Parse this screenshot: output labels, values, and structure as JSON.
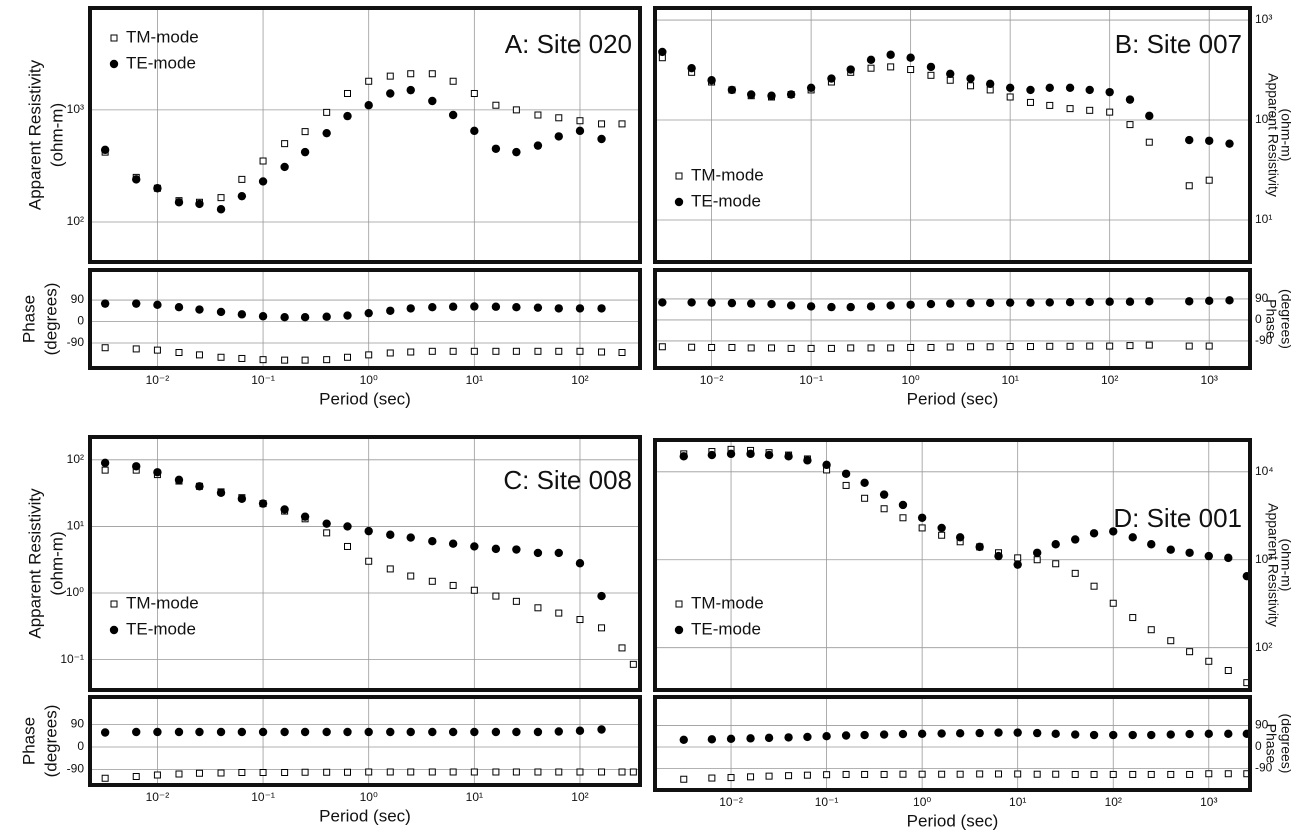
{
  "chart_data": [
    {
      "type": "scatter",
      "title": "A: Site 020",
      "ylabel": [
        "Apparent Resistivity",
        "(ohm-m)"
      ],
      "xscale": "log",
      "yscale": "log",
      "grid": true,
      "legend": "upper left",
      "yaxis": "left",
      "x": [
        0.0032,
        0.0063,
        0.01,
        0.016,
        0.025,
        0.04,
        0.063,
        0.1,
        0.16,
        0.25,
        0.4,
        0.63,
        1,
        1.6,
        2.5,
        4,
        6.3,
        10,
        16,
        25,
        40,
        63,
        100,
        160,
        250
      ],
      "series": [
        {
          "name": "TM-mode",
          "marker": "square-open",
          "color": "#000000",
          "values": [
            420,
            250,
            200,
            155,
            150,
            165,
            240,
            350,
            500,
            640,
            950,
            1400,
            1800,
            2000,
            2100,
            2100,
            1800,
            1400,
            1100,
            1000,
            900,
            850,
            800,
            750,
            750
          ]
        },
        {
          "name": "TE-mode",
          "marker": "circle",
          "color": "#000000",
          "values": [
            440,
            240,
            200,
            150,
            145,
            130,
            170,
            230,
            310,
            420,
            620,
            880,
            1100,
            1400,
            1500,
            1200,
            900,
            650,
            450,
            420,
            480,
            580,
            650,
            550,
            null
          ]
        }
      ],
      "xlim": [
        0.0023,
        370
      ],
      "ylim": [
        44,
        8100
      ],
      "xticks": [
        0.01,
        0.1,
        1,
        10,
        100
      ],
      "yticks": [
        {
          "value": 100,
          "label": "10²"
        },
        {
          "value": 1000,
          "label": "10³"
        }
      ]
    },
    {
      "type": "scatter",
      "ylabel": [
        "Phase",
        "(degrees)"
      ],
      "xlabel": "Period (sec)",
      "xscale": "log",
      "yscale": "linear",
      "grid": true,
      "yaxis": "left",
      "x": [
        0.0032,
        0.0063,
        0.01,
        0.016,
        0.025,
        0.04,
        0.063,
        0.1,
        0.16,
        0.25,
        0.4,
        0.63,
        1,
        1.6,
        2.5,
        4,
        6.3,
        10,
        16,
        25,
        40,
        63,
        100,
        160,
        250
      ],
      "series": [
        {
          "marker": "square-open",
          "color": "#000000",
          "values": [
            -110,
            -115,
            -120,
            -130,
            -140,
            -150,
            -155,
            -160,
            -162,
            -162,
            -160,
            -150,
            -140,
            -132,
            -128,
            -125,
            -125,
            -125,
            -125,
            -125,
            -125,
            -125,
            -125,
            -128,
            -130
          ]
        },
        {
          "marker": "circle",
          "color": "#000000",
          "values": [
            75,
            75,
            70,
            60,
            50,
            40,
            30,
            22,
            18,
            18,
            20,
            25,
            35,
            45,
            55,
            60,
            62,
            63,
            62,
            60,
            58,
            55,
            55,
            55,
            null
          ]
        }
      ],
      "xlim": [
        0.0023,
        370
      ],
      "ylim": [
        -195,
        216
      ],
      "xticks": [
        {
          "value": 0.01,
          "label": "10⁻²"
        },
        {
          "value": 0.1,
          "label": "10⁻¹"
        },
        {
          "value": 1,
          "label": "10⁰"
        },
        {
          "value": 10,
          "label": "10¹"
        },
        {
          "value": 100,
          "label": "10²"
        }
      ],
      "yticks": [
        90,
        0,
        -90
      ]
    },
    {
      "type": "scatter",
      "title": "B: Site 007",
      "ylabel": [
        "Apparent Resistivity",
        "(ohm-m)"
      ],
      "xscale": "log",
      "yscale": "log",
      "grid": true,
      "legend": "lower left",
      "yaxis": "right",
      "x": [
        0.0032,
        0.0063,
        0.01,
        0.016,
        0.025,
        0.04,
        0.063,
        0.1,
        0.16,
        0.25,
        0.4,
        0.63,
        1,
        1.6,
        2.5,
        4,
        6.3,
        10,
        16,
        25,
        40,
        63,
        100,
        160,
        250,
        630,
        1000,
        1600
      ],
      "series": [
        {
          "name": "TM-mode",
          "marker": "square-open",
          "color": "#000000",
          "values": [
            420,
            300,
            240,
            200,
            175,
            170,
            180,
            200,
            240,
            300,
            330,
            340,
            320,
            280,
            250,
            220,
            200,
            170,
            150,
            140,
            130,
            125,
            120,
            90,
            60,
            22,
            25,
            null
          ]
        },
        {
          "name": "TE-mode",
          "marker": "circle",
          "color": "#000000",
          "values": [
            480,
            330,
            250,
            200,
            180,
            175,
            180,
            210,
            260,
            320,
            400,
            450,
            420,
            340,
            290,
            260,
            230,
            210,
            200,
            210,
            210,
            200,
            190,
            160,
            110,
            63,
            62,
            58
          ]
        }
      ],
      "xlim": [
        0.0027,
        2570
      ],
      "ylim": [
        3.8,
        1320
      ],
      "xticks": [
        0.01,
        0.1,
        1,
        10,
        100,
        1000
      ],
      "yticks": [
        {
          "value": 10,
          "label": "10¹"
        },
        {
          "value": 100,
          "label": "10²"
        },
        {
          "value": 1000,
          "label": "10³"
        }
      ]
    },
    {
      "type": "scatter",
      "ylabel": [
        "Phase",
        "(degrees)"
      ],
      "xlabel": "Period (sec)",
      "xscale": "log",
      "yscale": "linear",
      "grid": true,
      "yaxis": "right",
      "x": [
        0.0032,
        0.0063,
        0.01,
        0.016,
        0.025,
        0.04,
        0.063,
        0.1,
        0.16,
        0.25,
        0.4,
        0.63,
        1,
        1.6,
        2.5,
        4,
        6.3,
        10,
        16,
        25,
        40,
        63,
        100,
        160,
        250,
        630,
        1000,
        1600
      ],
      "series": [
        {
          "marker": "square-open",
          "color": "#000000",
          "values": [
            -115,
            -117,
            -118,
            -118,
            -120,
            -120,
            -122,
            -122,
            -122,
            -120,
            -120,
            -120,
            -118,
            -118,
            -116,
            -115,
            -115,
            -114,
            -114,
            -113,
            -113,
            -112,
            -112,
            -110,
            -108,
            -112,
            -112,
            null
          ]
        },
        {
          "marker": "circle",
          "color": "#000000",
          "values": [
            75,
            75,
            74,
            72,
            70,
            68,
            62,
            58,
            55,
            55,
            58,
            62,
            65,
            68,
            70,
            72,
            73,
            74,
            74,
            75,
            76,
            77,
            78,
            78,
            80,
            80,
            82,
            84
          ]
        }
      ],
      "xlim": [
        0.0027,
        2570
      ],
      "ylim": [
        -206,
        214
      ],
      "xticks": [
        {
          "value": 0.01,
          "label": "10⁻²"
        },
        {
          "value": 0.1,
          "label": "10⁻¹"
        },
        {
          "value": 1,
          "label": "10⁰"
        },
        {
          "value": 10,
          "label": "10¹"
        },
        {
          "value": 100,
          "label": "10²"
        },
        {
          "value": 1000,
          "label": "10³"
        }
      ],
      "yticks": [
        90,
        0,
        -90
      ]
    },
    {
      "type": "scatter",
      "title": "C: Site 008",
      "ylabel": [
        "Apparent Resistivity",
        "(ohm-m)"
      ],
      "xscale": "log",
      "yscale": "log",
      "grid": true,
      "legend": "lower left",
      "yaxis": "left",
      "x": [
        0.0032,
        0.0063,
        0.01,
        0.016,
        0.025,
        0.04,
        0.063,
        0.1,
        0.16,
        0.25,
        0.4,
        0.63,
        1,
        1.6,
        2.5,
        4,
        6.3,
        10,
        16,
        25,
        40,
        63,
        100,
        160,
        250,
        320
      ],
      "series": [
        {
          "name": "TM-mode",
          "marker": "square-open",
          "color": "#000000",
          "values": [
            70,
            70,
            60,
            48,
            40,
            33,
            27,
            22,
            17,
            13,
            8,
            5,
            3,
            2.3,
            1.8,
            1.5,
            1.3,
            1.1,
            0.9,
            0.75,
            0.6,
            0.5,
            0.4,
            0.3,
            0.15,
            0.085
          ]
        },
        {
          "name": "TE-mode",
          "marker": "circle",
          "color": "#000000",
          "values": [
            90,
            80,
            65,
            50,
            40,
            32,
            26,
            22,
            18,
            14,
            11,
            10,
            8.5,
            7.5,
            6.8,
            6,
            5.5,
            5,
            4.6,
            4.5,
            4,
            4,
            2.8,
            0.9,
            null,
            null
          ]
        }
      ],
      "xlim": [
        0.0023,
        370
      ],
      "ylim": [
        0.035,
        220
      ],
      "xticks": [
        0.01,
        0.1,
        1,
        10,
        100
      ],
      "yticks": [
        {
          "value": 0.1,
          "label": "10⁻¹"
        },
        {
          "value": 1,
          "label": "10⁰"
        },
        {
          "value": 10,
          "label": "10¹"
        },
        {
          "value": 100,
          "label": "10²"
        }
      ]
    },
    {
      "type": "scatter",
      "ylabel": [
        "Phase",
        "(degrees)"
      ],
      "xlabel": "Period (sec)",
      "xscale": "log",
      "yscale": "linear",
      "grid": true,
      "yaxis": "left",
      "x": [
        0.0032,
        0.0063,
        0.01,
        0.016,
        0.025,
        0.04,
        0.063,
        0.1,
        0.16,
        0.25,
        0.4,
        0.63,
        1,
        1.6,
        2.5,
        4,
        6.3,
        10,
        16,
        25,
        40,
        63,
        100,
        160,
        250,
        320
      ],
      "series": [
        {
          "marker": "square-open",
          "color": "#000000",
          "values": [
            -125,
            -118,
            -112,
            -108,
            -105,
            -104,
            -102,
            -102,
            -102,
            -101,
            -101,
            -101,
            -100,
            -100,
            -100,
            -100,
            -100,
            -100,
            -100,
            -100,
            -100,
            -100,
            -100,
            -100,
            -100,
            -100
          ]
        },
        {
          "marker": "circle",
          "color": "#000000",
          "values": [
            58,
            60,
            60,
            60,
            60,
            60,
            60,
            60,
            60,
            60,
            60,
            60,
            60,
            60,
            60,
            60,
            60,
            60,
            60,
            60,
            60,
            62,
            65,
            70,
            null,
            null
          ]
        }
      ],
      "xlim": [
        0.0023,
        370
      ],
      "ylim": [
        -152,
        200
      ],
      "xticks": [
        {
          "value": 0.01,
          "label": "10⁻²"
        },
        {
          "value": 0.1,
          "label": "10⁻¹"
        },
        {
          "value": 1,
          "label": "10⁰"
        },
        {
          "value": 10,
          "label": "10¹"
        },
        {
          "value": 100,
          "label": "10²"
        }
      ],
      "yticks": [
        90,
        0,
        -90
      ]
    },
    {
      "type": "scatter",
      "title": "D: Site 001",
      "ylabel": [
        "Apparent Resistivity",
        "(ohm-m)"
      ],
      "xscale": "log",
      "yscale": "log",
      "grid": true,
      "legend": "lower left",
      "yaxis": "right",
      "x": [
        0.0032,
        0.0063,
        0.01,
        0.016,
        0.025,
        0.04,
        0.063,
        0.1,
        0.16,
        0.25,
        0.4,
        0.63,
        1,
        1.6,
        2.5,
        4,
        6.3,
        10,
        16,
        25,
        40,
        63,
        100,
        160,
        250,
        400,
        630,
        1000,
        1600,
        2500
      ],
      "series": [
        {
          "name": "TM-mode",
          "marker": "square-open",
          "color": "#000000",
          "values": [
            16000,
            17000,
            18000,
            17500,
            16500,
            15500,
            14000,
            10500,
            7000,
            5000,
            3800,
            3000,
            2300,
            1900,
            1600,
            1400,
            1200,
            1050,
            1000,
            900,
            700,
            500,
            320,
            220,
            160,
            120,
            90,
            70,
            55,
            40
          ]
        },
        {
          "name": "TE-mode",
          "marker": "circle",
          "color": "#000000",
          "values": [
            15000,
            15500,
            16000,
            16000,
            15500,
            15000,
            13500,
            12000,
            9500,
            7500,
            5500,
            4200,
            3000,
            2300,
            1800,
            1400,
            1100,
            880,
            1200,
            1500,
            1700,
            2000,
            2100,
            1800,
            1500,
            1300,
            1200,
            1100,
            1050,
            650
          ]
        }
      ],
      "xlim": [
        0.0016,
        2700
      ],
      "ylim": [
        33,
        23000
      ],
      "xticks": [
        0.01,
        0.1,
        1,
        10,
        100,
        1000
      ],
      "yticks": [
        {
          "value": 100,
          "label": "10²"
        },
        {
          "value": 1000,
          "label": "10³"
        },
        {
          "value": 10000,
          "label": "10⁴"
        }
      ]
    },
    {
      "type": "scatter",
      "ylabel": [
        "Phase",
        "(degrees)"
      ],
      "xlabel": "Period (sec)",
      "xscale": "log",
      "yscale": "linear",
      "grid": true,
      "yaxis": "right",
      "x": [
        0.0032,
        0.0063,
        0.01,
        0.016,
        0.025,
        0.04,
        0.063,
        0.1,
        0.16,
        0.25,
        0.4,
        0.63,
        1,
        1.6,
        2.5,
        4,
        6.3,
        10,
        16,
        25,
        40,
        63,
        100,
        160,
        250,
        400,
        630,
        1000,
        1600,
        2500
      ],
      "series": [
        {
          "marker": "square-open",
          "color": "#000000",
          "values": [
            -135,
            -130,
            -128,
            -125,
            -122,
            -120,
            -118,
            -116,
            -115,
            -115,
            -115,
            -114,
            -114,
            -114,
            -114,
            -113,
            -113,
            -113,
            -114,
            -114,
            -115,
            -115,
            -115,
            -115,
            -115,
            -115,
            -115,
            -112,
            -112,
            -112
          ]
        },
        {
          "marker": "circle",
          "color": "#000000",
          "values": [
            30,
            32,
            34,
            36,
            38,
            40,
            42,
            45,
            48,
            50,
            52,
            54,
            55,
            56,
            57,
            58,
            60,
            60,
            58,
            55,
            52,
            50,
            50,
            50,
            50,
            52,
            54,
            55,
            55,
            55
          ]
        }
      ],
      "xlim": [
        0.0016,
        2700
      ],
      "ylim": [
        -180,
        209
      ],
      "xticks": [
        {
          "value": 0.01,
          "label": "10⁻²"
        },
        {
          "value": 0.1,
          "label": "10⁻¹"
        },
        {
          "value": 1,
          "label": "10⁰"
        },
        {
          "value": 10,
          "label": "10¹"
        },
        {
          "value": 100,
          "label": "10²"
        },
        {
          "value": 1000,
          "label": "10³"
        }
      ],
      "yticks": [
        90,
        0,
        -90
      ]
    }
  ]
}
